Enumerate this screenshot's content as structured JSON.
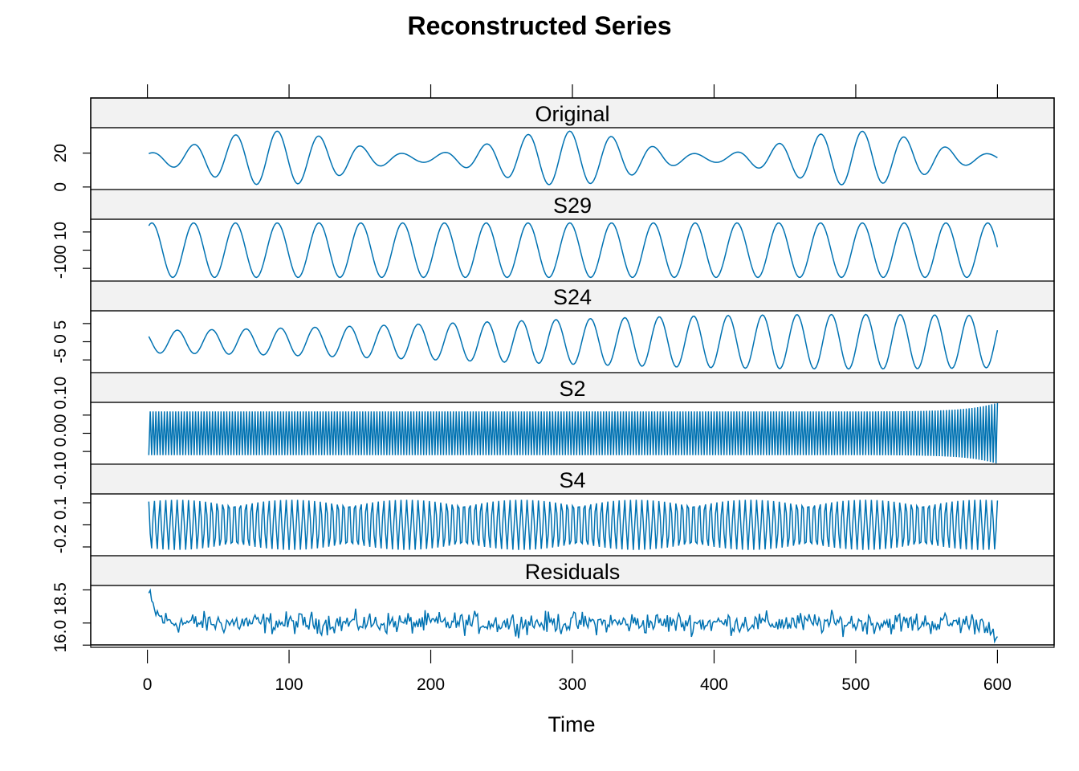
{
  "chart_data": {
    "type": "line",
    "title": "Reconstructed Series",
    "xlabel": "Time",
    "xlim": [
      -40,
      640
    ],
    "xticks": [
      0,
      100,
      200,
      300,
      400,
      500,
      600
    ],
    "xtick_labels": [
      "0",
      "100",
      "200",
      "300",
      "400",
      "500",
      "600"
    ],
    "n_points": 600,
    "line_color": "#0072B2",
    "strip_color": "#F2F2F2",
    "series": [
      {
        "name": "Original",
        "ylim": [
          -1.5,
          35
        ],
        "yticks": [
          0,
          20
        ],
        "ytick_labels": [
          "0",
          "20"
        ],
        "model": "modulated_sine",
        "offset": 17,
        "amplitude": 16,
        "period": 29.5,
        "phase": 0.9,
        "envelope_period": 205,
        "envelope_phase": 0.4,
        "envelope_depth": 0.85
      },
      {
        "name": "S29",
        "ylim": [
          -17,
          17
        ],
        "yticks": [
          -10,
          0,
          10
        ],
        "ytick_labels": [
          "-10",
          "0",
          "10"
        ],
        "tick_label_text": "-100 10",
        "model": "sine",
        "offset": 0,
        "amplitude": 15,
        "period": 29.5,
        "phase": 0.9
      },
      {
        "name": "S24",
        "ylim": [
          -8.5,
          8.5
        ],
        "yticks": [
          -5,
          0,
          5
        ],
        "ytick_labels": [
          "-5",
          "0",
          "5"
        ],
        "tick_label_text": "-5 0 5",
        "model": "modulated_sine",
        "offset": 0,
        "amplitude": 7.5,
        "period": 24.3,
        "phase": 2.4,
        "envelope_period": 1100,
        "envelope_phase": 0.3,
        "envelope_depth": 0.6
      },
      {
        "name": "S2",
        "ylim": [
          -0.17,
          0.17
        ],
        "yticks": [
          -0.1,
          0.0,
          0.1
        ],
        "ytick_labels": [
          "-0.10",
          "0.00",
          "0.10"
        ],
        "tick_label_text": "-0.10 0.00 0.10",
        "model": "alternating",
        "offset": 0,
        "amplitude": 0.12,
        "period": 2
      },
      {
        "name": "S4",
        "ylim": [
          -0.26,
          0.16
        ],
        "yticks": [
          -0.2,
          -0.05,
          0.1
        ],
        "ytick_labels": [
          "-0.2",
          "",
          "0.1"
        ],
        "tick_label_text": "-0.2 0.1",
        "model": "sine",
        "offset": -0.05,
        "amplitude": 0.17,
        "period": 4.05,
        "phase": 0.4
      },
      {
        "name": "Residuals",
        "ylim": [
          15.9,
          18.7
        ],
        "yticks": [
          16.0,
          17.0,
          18.5
        ],
        "ytick_labels": [
          "16.0",
          "",
          "18.5"
        ],
        "tick_label_text": "16.0 18.5",
        "model": "noise",
        "offset": 17.0,
        "amplitude": 0.22,
        "start_value": 18.6,
        "start_decay": 5
      }
    ]
  }
}
